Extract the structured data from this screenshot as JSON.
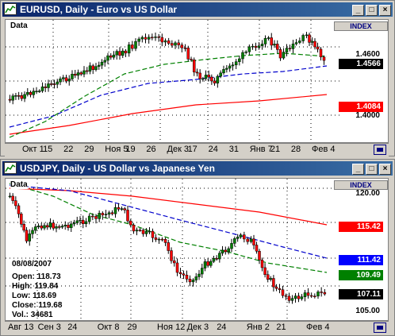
{
  "top": {
    "title": "EURUSD, Daily - Euro vs US Dollar",
    "data_label": "Data",
    "index_label": "INDEX",
    "ticks": [
      "1.4600",
      "1.4000"
    ],
    "prices": [
      {
        "label": "1.4566",
        "bg": "#000000",
        "fg": "#ffffff"
      },
      {
        "label": "1.4084",
        "bg": "#ff0000",
        "fg": "#ffffff"
      }
    ],
    "x_labels": [
      "Окт 1",
      "15",
      "22",
      "29",
      "Ноя 5",
      "19",
      "26",
      "Дек 3",
      "17",
      "24",
      "31",
      "Янв 7",
      "21",
      "28",
      "Фев 4"
    ]
  },
  "bottom": {
    "title": "USDJPY, Daily - US Dollar vs Japanese Yen",
    "data_label": "Data",
    "index_label": "INDEX",
    "ticks": [
      "120.00",
      "105.00"
    ],
    "prices": [
      {
        "label": "115.42",
        "bg": "#ff0000",
        "fg": "#ffffff"
      },
      {
        "label": "111.42",
        "bg": "#0000ff",
        "fg": "#ffffff"
      },
      {
        "label": "109.49",
        "bg": "#008000",
        "fg": "#ffffff"
      },
      {
        "label": "107.11",
        "bg": "#000000",
        "fg": "#ffffff"
      }
    ],
    "info": {
      "date": "08/08/2007",
      "open": "Open: 118.73",
      "high": "High: 119.84",
      "low": "Low: 118.69",
      "close": "Close: 119.68",
      "vol": "Vol.: 34681"
    },
    "x_labels": [
      "Авг 13",
      "Сен 3",
      "24",
      "Окт 8",
      "29",
      "Ноя 12",
      "Дек 3",
      "24",
      "Янв 2",
      "21",
      "Фев 4"
    ]
  },
  "colors": {
    "title_bar": "#0a246a",
    "up_candle": "#008000",
    "down_candle": "#ff0000"
  }
}
